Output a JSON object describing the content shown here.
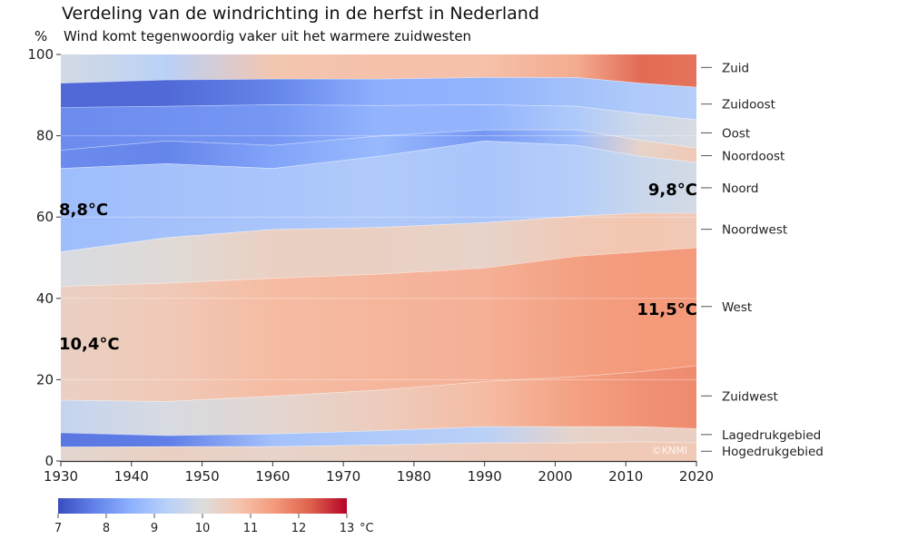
{
  "chart_data": {
    "type": "area",
    "title": "Verdeling van de windrichting in de herfst in Nederland",
    "subtitle": "Wind komt tegenwoordig vaker uit het warmere zuidwesten",
    "ylabel": "%",
    "xlabel": "",
    "xlim": [
      1930,
      2020
    ],
    "ylim": [
      0,
      100
    ],
    "x_ticks": [
      1930,
      1940,
      1950,
      1960,
      1970,
      1980,
      1990,
      2000,
      2010,
      2020
    ],
    "y_ticks": [
      0,
      20,
      40,
      60,
      80,
      100
    ],
    "grid": "horizontal faint",
    "x": [
      1930,
      1945,
      1960,
      1975,
      1990,
      2003,
      2012,
      2020
    ],
    "series_note": "stacked cumulative upper boundaries (%) for each band, bottom to top; color = mean temperature (°C)",
    "series": [
      {
        "name": "Hogedrukgebied",
        "upper": [
          3.5,
          3.6,
          3.6,
          4.0,
          4.5,
          4.5,
          4.8,
          4.5
        ],
        "temp": [
          10.2,
          10.4,
          10.3,
          10.4,
          10.5,
          10.6,
          10.6,
          10.6
        ]
      },
      {
        "name": "Lagedrukgebied",
        "upper": [
          7.0,
          6.3,
          6.7,
          7.5,
          8.5,
          8.5,
          8.5,
          8.0
        ],
        "temp": [
          7.6,
          7.7,
          8.9,
          9.1,
          9.3,
          10.3,
          10.4,
          10.4
        ]
      },
      {
        "name": "Zuidwest",
        "upper": [
          15.0,
          14.7,
          16.0,
          17.5,
          19.6,
          20.8,
          22.0,
          23.5
        ],
        "temp": [
          9.5,
          9.9,
          10.2,
          10.5,
          10.9,
          11.4,
          11.6,
          11.7
        ]
      },
      {
        "name": "West",
        "upper": [
          43.0,
          43.8,
          45.0,
          46.0,
          47.5,
          50.4,
          51.5,
          52.5
        ],
        "temp": [
          10.4,
          10.6,
          10.9,
          11.0,
          11.1,
          11.4,
          11.5,
          11.5
        ]
      },
      {
        "name": "Noordwest",
        "upper": [
          51.5,
          55.0,
          57.0,
          57.5,
          58.7,
          60.3,
          61.0,
          61.0
        ],
        "temp": [
          9.9,
          10.1,
          10.4,
          10.4,
          10.3,
          10.6,
          10.7,
          10.6
        ]
      },
      {
        "name": "Noord",
        "upper": [
          72.0,
          73.2,
          72.0,
          75.0,
          78.8,
          77.7,
          75.0,
          73.5
        ],
        "temp": [
          8.8,
          8.9,
          9.0,
          9.1,
          9.0,
          9.2,
          9.6,
          9.8
        ]
      },
      {
        "name": "Noordoost",
        "upper": [
          76.5,
          78.8,
          77.7,
          80.0,
          81.5,
          81.5,
          79.0,
          77.0
        ],
        "temp": [
          7.9,
          7.8,
          8.3,
          8.7,
          8.1,
          8.8,
          10.3,
          10.6
        ]
      },
      {
        "name": "Oost",
        "upper": [
          87.0,
          87.3,
          87.7,
          87.5,
          87.7,
          87.3,
          85.5,
          84.0
        ],
        "temp": [
          7.9,
          8.0,
          8.1,
          8.6,
          8.6,
          9.1,
          9.7,
          9.9
        ]
      },
      {
        "name": "Zuidoost",
        "upper": [
          93.0,
          93.8,
          94.0,
          94.0,
          94.4,
          94.4,
          93.0,
          92.0
        ],
        "temp": [
          7.4,
          7.4,
          7.8,
          8.5,
          8.6,
          8.9,
          9.1,
          9.2
        ]
      },
      {
        "name": "Zuid",
        "upper": [
          100,
          100,
          100,
          100,
          100,
          100,
          100,
          100
        ],
        "temp": [
          9.8,
          9.3,
          10.7,
          10.8,
          10.8,
          11.2,
          12.1,
          12.0
        ]
      }
    ],
    "band_labels": [
      {
        "name": "Zuid",
        "y": 96.8
      },
      {
        "name": "Zuidoost",
        "y": 87.8
      },
      {
        "name": "Oost",
        "y": 80.7
      },
      {
        "name": "Noordoost",
        "y": 75.1
      },
      {
        "name": "Noord",
        "y": 67.2
      },
      {
        "name": "Noordwest",
        "y": 57.0
      },
      {
        "name": "West",
        "y": 38.0
      },
      {
        "name": "Zuidwest",
        "y": 16.0
      },
      {
        "name": "Lagedrukgebied",
        "y": 6.5
      },
      {
        "name": "Hogedrukgebied",
        "y": 2.4
      }
    ],
    "annotations": [
      {
        "text": "8,8°C",
        "x": 1930,
        "y": 62,
        "anchor": "start"
      },
      {
        "text": "10,4°C",
        "x": 1930,
        "y": 29,
        "anchor": "start"
      },
      {
        "text": "9,8°C",
        "x": 2020,
        "y": 67,
        "anchor": "end"
      },
      {
        "text": "11,5°C",
        "x": 2020,
        "y": 37.5,
        "anchor": "end"
      }
    ],
    "colorbar": {
      "range": [
        7,
        13
      ],
      "ticks": [
        7,
        8,
        9,
        10,
        11,
        12,
        13
      ],
      "unit": "°C",
      "colormap": "coolwarm",
      "placement": "bottom-left"
    },
    "credit": "©KNMI"
  }
}
